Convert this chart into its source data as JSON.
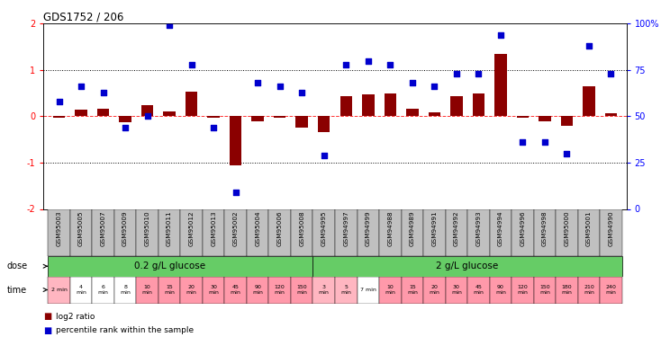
{
  "title": "GDS1752 / 206",
  "samples": [
    "GSM95003",
    "GSM95005",
    "GSM95007",
    "GSM95009",
    "GSM95010",
    "GSM95011",
    "GSM95012",
    "GSM95013",
    "GSM95002",
    "GSM95004",
    "GSM95006",
    "GSM95008",
    "GSM94995",
    "GSM94997",
    "GSM94999",
    "GSM94988",
    "GSM94989",
    "GSM94991",
    "GSM94992",
    "GSM94993",
    "GSM94994",
    "GSM94996",
    "GSM94998",
    "GSM95000",
    "GSM95001",
    "GSM94990"
  ],
  "log2_ratio": [
    -0.04,
    0.14,
    0.17,
    -0.13,
    0.24,
    0.11,
    0.54,
    -0.04,
    -1.05,
    -0.1,
    -0.04,
    -0.24,
    -0.34,
    0.44,
    0.48,
    0.49,
    0.17,
    0.09,
    0.44,
    0.49,
    1.34,
    -0.04,
    -0.11,
    -0.21,
    0.64,
    0.07
  ],
  "percentile_rank": [
    58,
    66,
    63,
    44,
    50,
    99,
    78,
    44,
    9,
    68,
    66,
    63,
    29,
    78,
    80,
    78,
    68,
    66,
    73,
    73,
    94,
    36,
    36,
    30,
    88,
    73
  ],
  "bar_color": "#8B0000",
  "dot_color": "#0000CD",
  "ylim_left": [
    -2,
    2
  ],
  "ylim_right": [
    0,
    100
  ],
  "yticks_left": [
    -2,
    -1,
    0,
    1,
    2
  ],
  "ytick_labels_left": [
    "-2",
    "-1",
    "0",
    "1",
    "2"
  ],
  "yticks_right": [
    0,
    25,
    50,
    75,
    100
  ],
  "ytick_labels_right": [
    "0",
    "25",
    "50",
    "75",
    "100%"
  ],
  "hlines_dotted": [
    -1,
    1
  ],
  "hline_red": 0,
  "dose_group1_label": "0.2 g/L glucose",
  "dose_group2_label": "2 g/L glucose",
  "dose_split": 12,
  "dose_color": "#66CC66",
  "sample_box_color": "#C0C0C0",
  "time_labels": [
    "2 min",
    "4\nmin",
    "6\nmin",
    "8\nmin",
    "10\nmin",
    "15\nmin",
    "20\nmin",
    "30\nmin",
    "45\nmin",
    "90\nmin",
    "120\nmin",
    "150\nmin",
    "3\nmin",
    "5\nmin",
    "7 min",
    "10\nmin",
    "15\nmin",
    "20\nmin",
    "30\nmin",
    "45\nmin",
    "90\nmin",
    "120\nmin",
    "150\nmin",
    "180\nmin",
    "210\nmin",
    "240\nmin"
  ],
  "time_colors": [
    "#FFB6C1",
    "#FFFFFF",
    "#FFFFFF",
    "#FFFFFF",
    "#FF99AA",
    "#FF99AA",
    "#FF99AA",
    "#FF99AA",
    "#FF99AA",
    "#FF99AA",
    "#FF99AA",
    "#FF99AA",
    "#FFB6C1",
    "#FFB6C1",
    "#FFFFFF",
    "#FF99AA",
    "#FF99AA",
    "#FF99AA",
    "#FF99AA",
    "#FF99AA",
    "#FF99AA",
    "#FF99AA",
    "#FF99AA",
    "#FF99AA",
    "#FF99AA",
    "#FF99AA"
  ],
  "legend_bar_label": "log2 ratio",
  "legend_dot_label": "percentile rank within the sample",
  "background_color": "#FFFFFF"
}
